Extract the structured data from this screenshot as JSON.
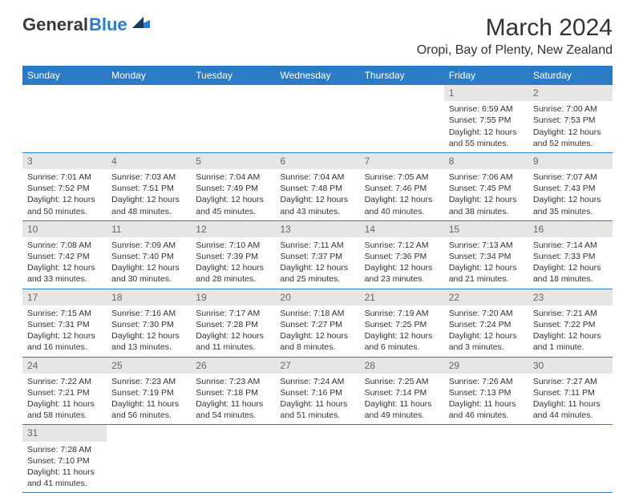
{
  "logo": {
    "text1": "General",
    "text2": "Blue",
    "accent_color": "#2b7cc4"
  },
  "title": "March 2024",
  "location": "Oropi, Bay of Plenty, New Zealand",
  "weekdays": [
    "Sunday",
    "Monday",
    "Tuesday",
    "Wednesday",
    "Thursday",
    "Friday",
    "Saturday"
  ],
  "colors": {
    "header_bg": "#2b7cc4",
    "header_fg": "#ffffff",
    "daynum_bg": "#e6e6e6",
    "cell_border": "#2b7cc4"
  },
  "weeks": [
    [
      null,
      null,
      null,
      null,
      null,
      {
        "n": "1",
        "sr": "Sunrise: 6:59 AM",
        "ss": "Sunset: 7:55 PM",
        "d1": "Daylight: 12 hours",
        "d2": "and 55 minutes."
      },
      {
        "n": "2",
        "sr": "Sunrise: 7:00 AM",
        "ss": "Sunset: 7:53 PM",
        "d1": "Daylight: 12 hours",
        "d2": "and 52 minutes."
      }
    ],
    [
      {
        "n": "3",
        "sr": "Sunrise: 7:01 AM",
        "ss": "Sunset: 7:52 PM",
        "d1": "Daylight: 12 hours",
        "d2": "and 50 minutes."
      },
      {
        "n": "4",
        "sr": "Sunrise: 7:03 AM",
        "ss": "Sunset: 7:51 PM",
        "d1": "Daylight: 12 hours",
        "d2": "and 48 minutes."
      },
      {
        "n": "5",
        "sr": "Sunrise: 7:04 AM",
        "ss": "Sunset: 7:49 PM",
        "d1": "Daylight: 12 hours",
        "d2": "and 45 minutes."
      },
      {
        "n": "6",
        "sr": "Sunrise: 7:04 AM",
        "ss": "Sunset: 7:48 PM",
        "d1": "Daylight: 12 hours",
        "d2": "and 43 minutes."
      },
      {
        "n": "7",
        "sr": "Sunrise: 7:05 AM",
        "ss": "Sunset: 7:46 PM",
        "d1": "Daylight: 12 hours",
        "d2": "and 40 minutes."
      },
      {
        "n": "8",
        "sr": "Sunrise: 7:06 AM",
        "ss": "Sunset: 7:45 PM",
        "d1": "Daylight: 12 hours",
        "d2": "and 38 minutes."
      },
      {
        "n": "9",
        "sr": "Sunrise: 7:07 AM",
        "ss": "Sunset: 7:43 PM",
        "d1": "Daylight: 12 hours",
        "d2": "and 35 minutes."
      }
    ],
    [
      {
        "n": "10",
        "sr": "Sunrise: 7:08 AM",
        "ss": "Sunset: 7:42 PM",
        "d1": "Daylight: 12 hours",
        "d2": "and 33 minutes."
      },
      {
        "n": "11",
        "sr": "Sunrise: 7:09 AM",
        "ss": "Sunset: 7:40 PM",
        "d1": "Daylight: 12 hours",
        "d2": "and 30 minutes."
      },
      {
        "n": "12",
        "sr": "Sunrise: 7:10 AM",
        "ss": "Sunset: 7:39 PM",
        "d1": "Daylight: 12 hours",
        "d2": "and 28 minutes."
      },
      {
        "n": "13",
        "sr": "Sunrise: 7:11 AM",
        "ss": "Sunset: 7:37 PM",
        "d1": "Daylight: 12 hours",
        "d2": "and 25 minutes."
      },
      {
        "n": "14",
        "sr": "Sunrise: 7:12 AM",
        "ss": "Sunset: 7:36 PM",
        "d1": "Daylight: 12 hours",
        "d2": "and 23 minutes."
      },
      {
        "n": "15",
        "sr": "Sunrise: 7:13 AM",
        "ss": "Sunset: 7:34 PM",
        "d1": "Daylight: 12 hours",
        "d2": "and 21 minutes."
      },
      {
        "n": "16",
        "sr": "Sunrise: 7:14 AM",
        "ss": "Sunset: 7:33 PM",
        "d1": "Daylight: 12 hours",
        "d2": "and 18 minutes."
      }
    ],
    [
      {
        "n": "17",
        "sr": "Sunrise: 7:15 AM",
        "ss": "Sunset: 7:31 PM",
        "d1": "Daylight: 12 hours",
        "d2": "and 16 minutes."
      },
      {
        "n": "18",
        "sr": "Sunrise: 7:16 AM",
        "ss": "Sunset: 7:30 PM",
        "d1": "Daylight: 12 hours",
        "d2": "and 13 minutes."
      },
      {
        "n": "19",
        "sr": "Sunrise: 7:17 AM",
        "ss": "Sunset: 7:28 PM",
        "d1": "Daylight: 12 hours",
        "d2": "and 11 minutes."
      },
      {
        "n": "20",
        "sr": "Sunrise: 7:18 AM",
        "ss": "Sunset: 7:27 PM",
        "d1": "Daylight: 12 hours",
        "d2": "and 8 minutes."
      },
      {
        "n": "21",
        "sr": "Sunrise: 7:19 AM",
        "ss": "Sunset: 7:25 PM",
        "d1": "Daylight: 12 hours",
        "d2": "and 6 minutes."
      },
      {
        "n": "22",
        "sr": "Sunrise: 7:20 AM",
        "ss": "Sunset: 7:24 PM",
        "d1": "Daylight: 12 hours",
        "d2": "and 3 minutes."
      },
      {
        "n": "23",
        "sr": "Sunrise: 7:21 AM",
        "ss": "Sunset: 7:22 PM",
        "d1": "Daylight: 12 hours",
        "d2": "and 1 minute."
      }
    ],
    [
      {
        "n": "24",
        "sr": "Sunrise: 7:22 AM",
        "ss": "Sunset: 7:21 PM",
        "d1": "Daylight: 11 hours",
        "d2": "and 58 minutes."
      },
      {
        "n": "25",
        "sr": "Sunrise: 7:23 AM",
        "ss": "Sunset: 7:19 PM",
        "d1": "Daylight: 11 hours",
        "d2": "and 56 minutes."
      },
      {
        "n": "26",
        "sr": "Sunrise: 7:23 AM",
        "ss": "Sunset: 7:18 PM",
        "d1": "Daylight: 11 hours",
        "d2": "and 54 minutes."
      },
      {
        "n": "27",
        "sr": "Sunrise: 7:24 AM",
        "ss": "Sunset: 7:16 PM",
        "d1": "Daylight: 11 hours",
        "d2": "and 51 minutes."
      },
      {
        "n": "28",
        "sr": "Sunrise: 7:25 AM",
        "ss": "Sunset: 7:14 PM",
        "d1": "Daylight: 11 hours",
        "d2": "and 49 minutes."
      },
      {
        "n": "29",
        "sr": "Sunrise: 7:26 AM",
        "ss": "Sunset: 7:13 PM",
        "d1": "Daylight: 11 hours",
        "d2": "and 46 minutes."
      },
      {
        "n": "30",
        "sr": "Sunrise: 7:27 AM",
        "ss": "Sunset: 7:11 PM",
        "d1": "Daylight: 11 hours",
        "d2": "and 44 minutes."
      }
    ],
    [
      {
        "n": "31",
        "sr": "Sunrise: 7:28 AM",
        "ss": "Sunset: 7:10 PM",
        "d1": "Daylight: 11 hours",
        "d2": "and 41 minutes."
      },
      null,
      null,
      null,
      null,
      null,
      null
    ]
  ]
}
